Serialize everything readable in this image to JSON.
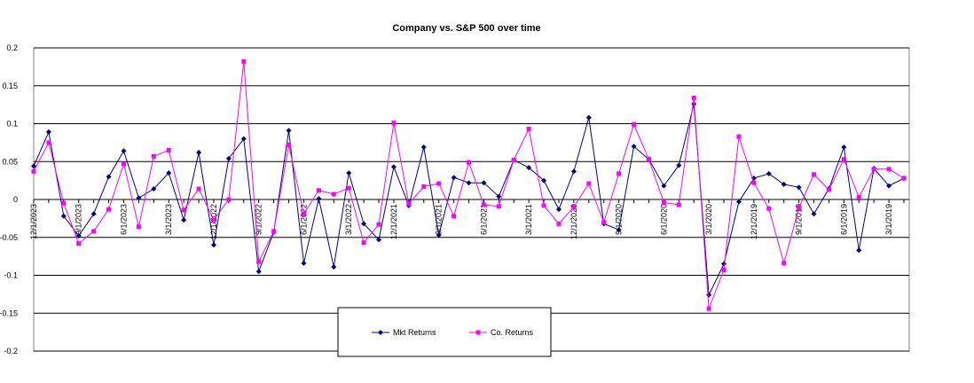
{
  "chart_data": {
    "type": "line",
    "title": "Company vs. S&P 500 over time",
    "categories": [
      "12/1/2023",
      null,
      null,
      "9/1/2023",
      null,
      null,
      "6/1/2023",
      null,
      null,
      "3/1/2023",
      null,
      null,
      "12/1/2022",
      null,
      null,
      "9/1/2022",
      null,
      null,
      "6/1/2022",
      null,
      null,
      "3/1/2022",
      null,
      null,
      "12/1/2021",
      null,
      null,
      "9/1/2021",
      null,
      null,
      "6/1/2021",
      null,
      null,
      "3/1/2021",
      null,
      null,
      "12/1/2020",
      null,
      null,
      "9/1/2020",
      null,
      null,
      "6/1/2020",
      null,
      null,
      "3/1/2020",
      null,
      null,
      "12/1/2019",
      null,
      null,
      "9/1/2019",
      null,
      null,
      "6/1/2019",
      null,
      null,
      "3/1/2019",
      null
    ],
    "series": [
      {
        "name": "Mkt Returns",
        "color": "#000080",
        "marker": "diamond",
        "values": [
          0.044,
          0.089,
          -0.022,
          -0.048,
          -0.019,
          0.03,
          0.064,
          0.002,
          0.014,
          0.035,
          -0.027,
          0.062,
          -0.06,
          0.054,
          0.08,
          -0.095,
          -0.043,
          0.091,
          -0.084,
          0.001,
          -0.089,
          0.035,
          -0.032,
          -0.053,
          0.043,
          -0.008,
          0.069,
          -0.047,
          0.029,
          0.022,
          0.022,
          0.004,
          0.052,
          0.042,
          0.025,
          -0.013,
          0.037,
          0.108,
          -0.032,
          -0.04,
          0.07,
          0.053,
          0.018,
          0.045,
          0.126,
          -0.126,
          -0.085,
          -0.003,
          0.028,
          0.034,
          0.02,
          0.016,
          -0.019,
          0.014,
          0.069,
          -0.067,
          0.041,
          0.018,
          0.028
        ]
      },
      {
        "name": "Co. Returns",
        "color": "#ff00ff",
        "marker": "square",
        "values": [
          0.037,
          0.075,
          -0.005,
          -0.058,
          -0.042,
          -0.013,
          0.047,
          -0.036,
          0.057,
          0.065,
          -0.014,
          0.014,
          -0.027,
          0.0,
          0.182,
          -0.082,
          -0.042,
          0.072,
          -0.019,
          0.012,
          0.007,
          0.015,
          -0.057,
          -0.033,
          0.101,
          -0.006,
          0.017,
          0.021,
          -0.022,
          0.049,
          -0.007,
          -0.009,
          0.052,
          0.093,
          -0.008,
          -0.032,
          -0.01,
          0.021,
          -0.03,
          0.034,
          0.099,
          0.053,
          -0.004,
          -0.007,
          0.134,
          -0.144,
          -0.093,
          0.083,
          0.022,
          -0.012,
          -0.084,
          -0.011,
          0.033,
          0.013,
          0.053,
          0.003,
          0.04,
          0.04,
          0.028
        ]
      }
    ],
    "ylim": [
      -0.2,
      0.2
    ],
    "yticks": [
      -0.2,
      -0.15,
      -0.1,
      -0.05,
      0,
      0.05,
      0.1,
      0.15,
      0.2
    ],
    "grid": true,
    "legend": "bottom"
  }
}
